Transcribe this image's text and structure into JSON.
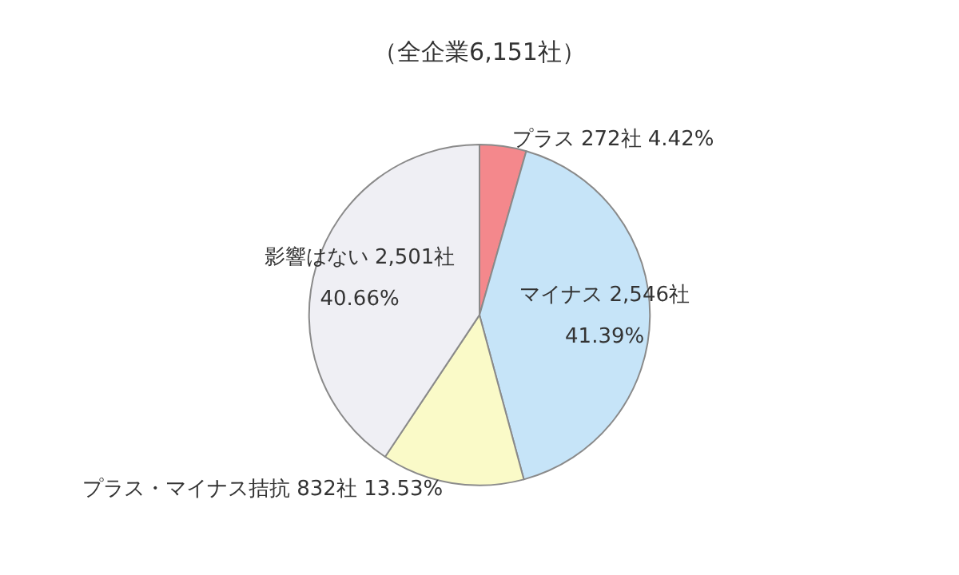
{
  "chart_data": {
    "type": "pie",
    "title": "（全企業6,151社）",
    "categories": [
      "プラス",
      "マイナス",
      "プラス・マイナス拮抗",
      "影響はない"
    ],
    "values": [
      272,
      2546,
      832,
      2501
    ],
    "colors": [
      "#f4888c",
      "#c6e4f8",
      "#fafac8",
      "#efeff4"
    ],
    "value_labels": [
      "272社 4.42%",
      "2,546社\n41.39%",
      "832社 13.53%",
      "2,501社\n40.66%"
    ],
    "legend": false
  }
}
